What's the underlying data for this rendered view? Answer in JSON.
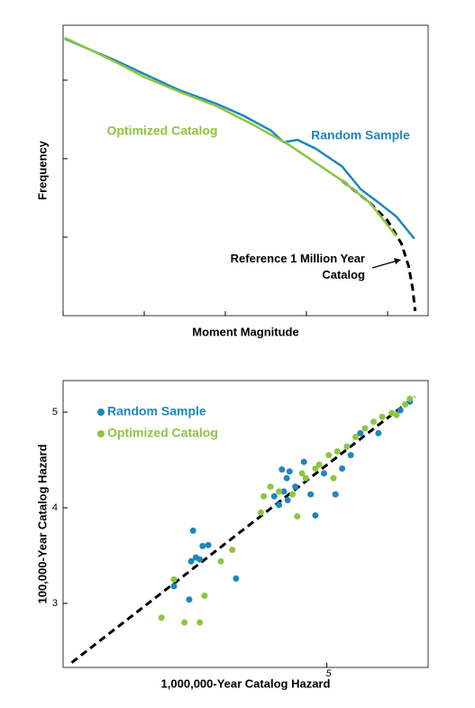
{
  "chart_data": [
    {
      "type": "line",
      "xlabel": "Moment Magnitude",
      "ylabel": "Frequency",
      "xlim": [
        5,
        9.5
      ],
      "ylim": [
        -4,
        -0.3
      ],
      "xticks": [
        5,
        6,
        7,
        8,
        9
      ],
      "yticks": [
        -1,
        -2,
        -3
      ],
      "tick_labels": false,
      "grid": false,
      "series": [
        {
          "name": "Random Sample",
          "color": "#1f86bf",
          "dash": false,
          "x": [
            5.02,
            5.33,
            5.67,
            6.0,
            6.44,
            6.89,
            7.22,
            7.56,
            7.72,
            7.89,
            8.11,
            8.44,
            8.67,
            8.89,
            9.11,
            9.33
          ],
          "values": [
            -0.47,
            -0.61,
            -0.76,
            -0.92,
            -1.13,
            -1.3,
            -1.45,
            -1.64,
            -1.79,
            -1.76,
            -1.87,
            -2.1,
            -2.39,
            -2.56,
            -2.74,
            -3.02
          ]
        },
        {
          "name": "Optimized Catalog",
          "color": "#8cc63e",
          "dash": false,
          "x": [
            5.02,
            5.33,
            5.67,
            6.0,
            6.44,
            6.89,
            7.33,
            7.78,
            8.11,
            8.44,
            8.78,
            9.11
          ],
          "values": [
            -0.46,
            -0.61,
            -0.78,
            -0.96,
            -1.15,
            -1.33,
            -1.56,
            -1.82,
            -2.05,
            -2.28,
            -2.56,
            -2.99
          ]
        },
        {
          "name": "Reference 1 Million Year Catalog",
          "color": "#000000",
          "dash": true,
          "x": [
            8.44,
            8.78,
            9.0,
            9.17,
            9.26,
            9.31,
            9.34
          ],
          "values": [
            -2.28,
            -2.56,
            -2.79,
            -3.08,
            -3.37,
            -3.66,
            -3.94
          ]
        }
      ]
    },
    {
      "type": "scatter",
      "xlabel": "1,000,000-Year Catalog Hazard",
      "ylabel": "100,000-Year Catalog Hazard",
      "xlim": [
        2.24,
        6.06
      ],
      "ylim": [
        2.33,
        5.33
      ],
      "xticks": [
        5
      ],
      "yticks": [
        3,
        4,
        5
      ],
      "tick_labels": true,
      "grid": false,
      "legend": "upper-left",
      "reference_line": {
        "color": "#000000",
        "x": [
          2.33,
          5.92
        ],
        "values": [
          2.38,
          5.16
        ]
      },
      "series": [
        {
          "name": "Random Sample",
          "color": "#1f86bf",
          "x": [
            3.4,
            3.56,
            3.58,
            3.6,
            3.63,
            3.7,
            3.76,
            3.67,
            4.05,
            4.53,
            4.58,
            4.61,
            4.67,
            4.76,
            4.83,
            4.88,
            4.55,
            4.59,
            4.97,
            5.09,
            5.16,
            5.25,
            5.35,
            5.54,
            5.77,
            5.87,
            4.5,
            4.45
          ],
          "values": [
            3.18,
            3.04,
            3.44,
            3.76,
            3.48,
            3.6,
            3.61,
            3.46,
            3.26,
            4.4,
            4.31,
            4.38,
            4.22,
            4.48,
            4.14,
            3.92,
            4.17,
            4.08,
            4.36,
            4.14,
            4.41,
            4.55,
            4.78,
            4.78,
            5.02,
            5.11,
            4.03,
            4.12
          ]
        },
        {
          "name": "Optimized Catalog",
          "color": "#8cc63e",
          "x": [
            3.27,
            3.51,
            3.67,
            3.4,
            3.72,
            3.89,
            4.01,
            4.34,
            4.31,
            4.41,
            4.5,
            4.64,
            4.69,
            4.74,
            4.78,
            4.88,
            4.92,
            5.02,
            5.11,
            5.21,
            5.3,
            5.4,
            5.49,
            5.58,
            5.68,
            5.73,
            5.82,
            5.87,
            5.07
          ],
          "values": [
            2.85,
            2.8,
            2.8,
            3.25,
            3.08,
            3.44,
            3.56,
            4.12,
            3.95,
            4.22,
            4.17,
            4.14,
            3.91,
            4.36,
            4.31,
            4.41,
            4.45,
            4.55,
            4.59,
            4.64,
            4.74,
            4.83,
            4.9,
            4.95,
            4.99,
            4.97,
            5.08,
            5.14,
            4.31
          ]
        }
      ]
    }
  ]
}
